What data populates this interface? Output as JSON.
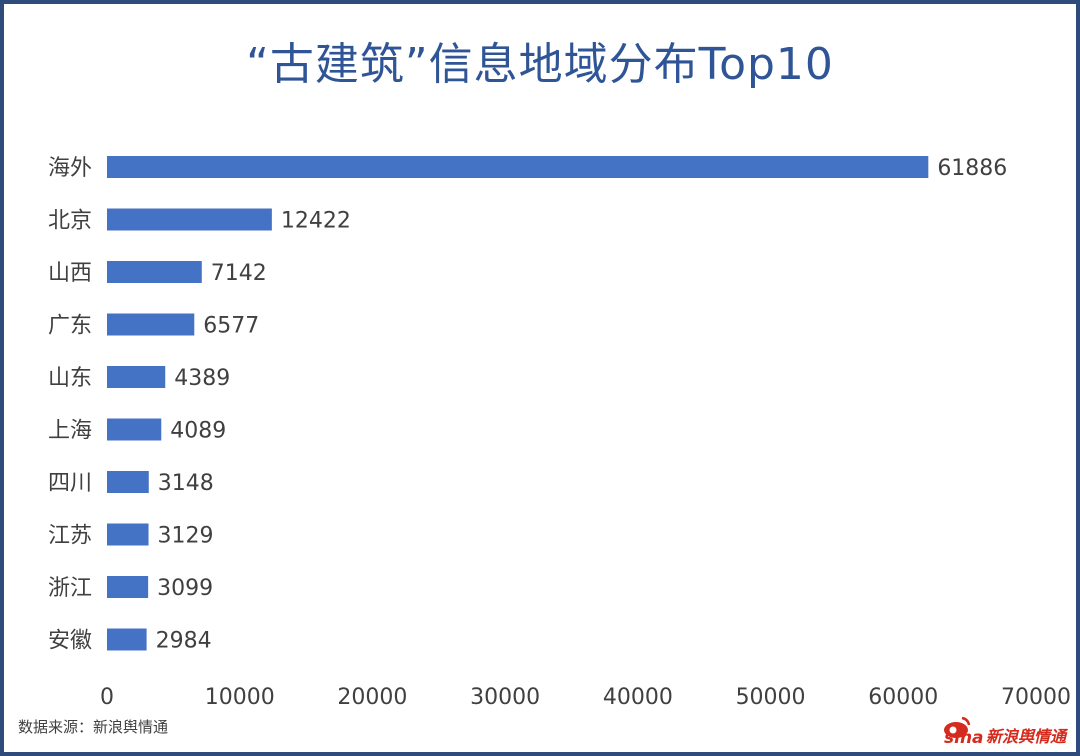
{
  "chart_data": {
    "type": "bar",
    "orientation": "horizontal",
    "title": "“古建筑”信息地域分布Top10",
    "categories": [
      "海外",
      "北京",
      "山西",
      "广东",
      "山东",
      "上海",
      "四川",
      "江苏",
      "浙江",
      "安徽"
    ],
    "values": [
      61886,
      12422,
      7142,
      6577,
      4389,
      4089,
      3148,
      3129,
      3099,
      2984
    ],
    "xlim": [
      0,
      70000
    ],
    "xticks": [
      0,
      10000,
      20000,
      30000,
      40000,
      50000,
      60000,
      70000
    ],
    "grid": false,
    "bar_color": "#4472c4",
    "data_labels": true
  },
  "footer": {
    "source": "数据来源：新浪舆情通",
    "logo_mark": "sina",
    "logo_text": "新浪舆情通"
  },
  "colors": {
    "title": "#2f5597",
    "frame": "#2f4b7c",
    "logo": "#d52b1e"
  }
}
